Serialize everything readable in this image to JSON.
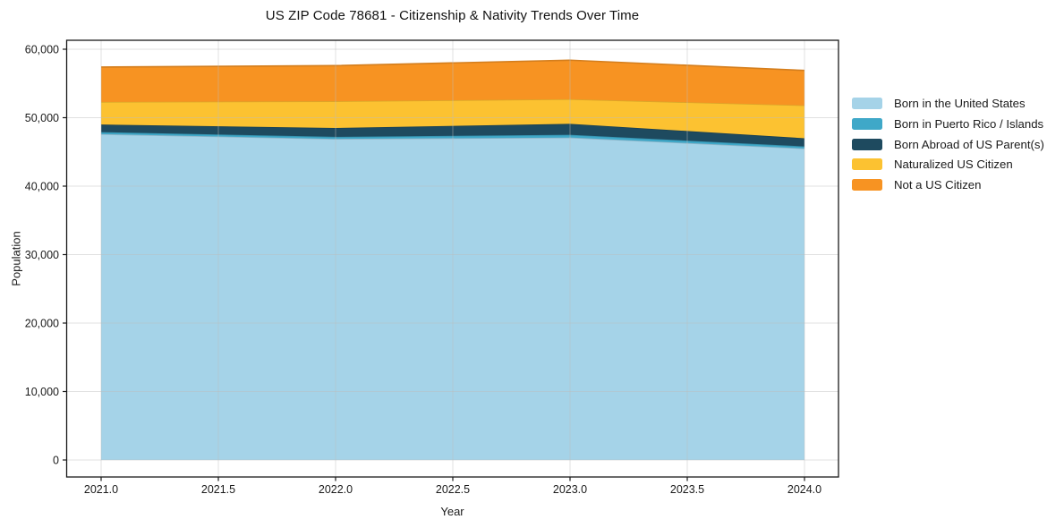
{
  "title": "US ZIP Code 78681 - Citizenship & Nativity Trends Over Time",
  "chart_data": {
    "type": "area",
    "stacked": true,
    "title": "US ZIP Code 78681 - Citizenship & Nativity Trends Over Time",
    "xlabel": "Year",
    "ylabel": "Population",
    "x": [
      2021,
      2022,
      2023,
      2024
    ],
    "series": [
      {
        "name": "Born in the United States",
        "color": "#a5d3e8",
        "values": [
          47600,
          46900,
          47100,
          45500
        ]
      },
      {
        "name": "Born in Puerto Rico / Islands",
        "color": "#3fa8c8",
        "values": [
          300,
          300,
          400,
          300
        ]
      },
      {
        "name": "Born Abroad of US Parent(s)",
        "color": "#1e4a5f",
        "values": [
          1100,
          1300,
          1600,
          1200
        ]
      },
      {
        "name": "Naturalized US Citizen",
        "color": "#fcc231",
        "values": [
          3300,
          3900,
          3600,
          4800
        ]
      },
      {
        "name": "Not a US Citizen",
        "color": "#f79322",
        "values": [
          5100,
          5200,
          5700,
          5100
        ]
      }
    ],
    "totals": [
      57400,
      57600,
      58400,
      56900
    ],
    "x_tick_labels": [
      "2021.0",
      "2021.5",
      "2022.0",
      "2022.5",
      "2023.0",
      "2023.5",
      "2024.0"
    ],
    "x_tick_values": [
      2021,
      2021.5,
      2022,
      2022.5,
      2023,
      2023.5,
      2024
    ],
    "y_tick_labels": [
      "0",
      "10,000",
      "20,000",
      "30,000",
      "40,000",
      "50,000",
      "60,000"
    ],
    "y_tick_values": [
      0,
      10000,
      20000,
      30000,
      40000,
      50000,
      60000
    ],
    "ylim": [
      0,
      60000
    ],
    "grid": true,
    "legend_position": "outside-right",
    "axis_color": "#1a1a1a",
    "grid_color": "#bdbdbd"
  }
}
